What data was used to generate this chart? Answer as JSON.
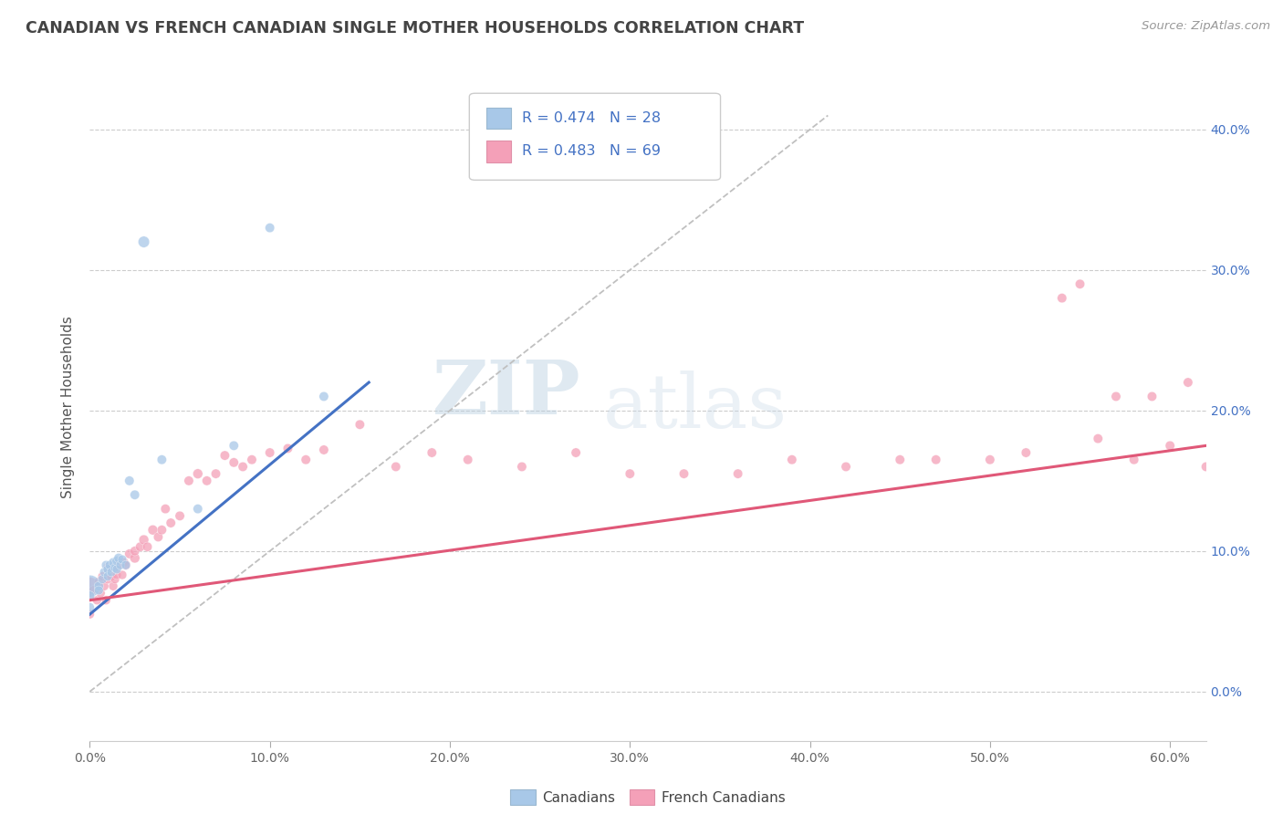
{
  "title": "CANADIAN VS FRENCH CANADIAN SINGLE MOTHER HOUSEHOLDS CORRELATION CHART",
  "source": "Source: ZipAtlas.com",
  "ylabel": "Single Mother Households",
  "legend_canadians": "Canadians",
  "legend_french": "French Canadians",
  "r_canadian": 0.474,
  "n_canadian": 28,
  "r_french": 0.483,
  "n_french": 69,
  "color_canadian": "#a8c8e8",
  "color_french": "#f4a0b8",
  "color_canadian_line": "#4472c4",
  "color_french_line": "#e05878",
  "color_diag_line": "#c0c0c0",
  "watermark_zip": "ZIP",
  "watermark_atlas": "atlas",
  "xlim": [
    0.0,
    0.62
  ],
  "ylim": [
    -0.035,
    0.44
  ],
  "xticks": [
    0.0,
    0.1,
    0.2,
    0.3,
    0.4,
    0.5,
    0.6
  ],
  "yticks": [
    0.0,
    0.1,
    0.2,
    0.3,
    0.4
  ],
  "canadians_x": [
    0.0,
    0.0,
    0.0,
    0.005,
    0.005,
    0.007,
    0.008,
    0.009,
    0.01,
    0.01,
    0.011,
    0.012,
    0.013,
    0.014,
    0.015,
    0.015,
    0.016,
    0.017,
    0.018,
    0.02,
    0.022,
    0.025,
    0.03,
    0.04,
    0.06,
    0.08,
    0.1,
    0.13
  ],
  "canadians_y": [
    0.075,
    0.068,
    0.06,
    0.075,
    0.072,
    0.08,
    0.085,
    0.09,
    0.087,
    0.082,
    0.09,
    0.085,
    0.092,
    0.088,
    0.093,
    0.087,
    0.095,
    0.09,
    0.094,
    0.09,
    0.15,
    0.14,
    0.32,
    0.165,
    0.13,
    0.175,
    0.33,
    0.21
  ],
  "canadians_size": [
    300,
    60,
    50,
    55,
    50,
    50,
    50,
    50,
    55,
    50,
    50,
    50,
    50,
    50,
    55,
    50,
    55,
    50,
    50,
    50,
    55,
    55,
    80,
    55,
    55,
    55,
    55,
    55
  ],
  "french_x": [
    0.0,
    0.0,
    0.0,
    0.002,
    0.004,
    0.005,
    0.006,
    0.007,
    0.008,
    0.009,
    0.01,
    0.01,
    0.012,
    0.013,
    0.014,
    0.015,
    0.015,
    0.016,
    0.018,
    0.019,
    0.02,
    0.022,
    0.025,
    0.025,
    0.028,
    0.03,
    0.032,
    0.035,
    0.038,
    0.04,
    0.042,
    0.045,
    0.05,
    0.055,
    0.06,
    0.065,
    0.07,
    0.075,
    0.08,
    0.085,
    0.09,
    0.1,
    0.11,
    0.12,
    0.13,
    0.15,
    0.17,
    0.19,
    0.21,
    0.24,
    0.27,
    0.3,
    0.33,
    0.36,
    0.39,
    0.42,
    0.45,
    0.47,
    0.5,
    0.52,
    0.54,
    0.55,
    0.56,
    0.57,
    0.58,
    0.59,
    0.6,
    0.61,
    0.62
  ],
  "french_y": [
    0.075,
    0.068,
    0.055,
    0.072,
    0.065,
    0.078,
    0.07,
    0.082,
    0.075,
    0.065,
    0.08,
    0.088,
    0.082,
    0.075,
    0.08,
    0.088,
    0.083,
    0.09,
    0.083,
    0.092,
    0.09,
    0.098,
    0.095,
    0.1,
    0.103,
    0.108,
    0.103,
    0.115,
    0.11,
    0.115,
    0.13,
    0.12,
    0.125,
    0.15,
    0.155,
    0.15,
    0.155,
    0.168,
    0.163,
    0.16,
    0.165,
    0.17,
    0.173,
    0.165,
    0.172,
    0.19,
    0.16,
    0.17,
    0.165,
    0.16,
    0.17,
    0.155,
    0.155,
    0.155,
    0.165,
    0.16,
    0.165,
    0.165,
    0.165,
    0.17,
    0.28,
    0.29,
    0.18,
    0.21,
    0.165,
    0.21,
    0.175,
    0.22,
    0.16
  ],
  "french_size": [
    200,
    60,
    50,
    55,
    50,
    55,
    50,
    50,
    50,
    50,
    55,
    55,
    50,
    50,
    50,
    55,
    50,
    55,
    50,
    50,
    55,
    55,
    60,
    55,
    55,
    60,
    55,
    60,
    55,
    55,
    55,
    55,
    55,
    55,
    60,
    55,
    55,
    55,
    55,
    55,
    55,
    55,
    55,
    55,
    55,
    55,
    55,
    55,
    55,
    55,
    55,
    55,
    55,
    55,
    55,
    55,
    55,
    55,
    55,
    55,
    55,
    55,
    55,
    55,
    55,
    55,
    55,
    55,
    55
  ],
  "canadian_line_x": [
    0.0,
    0.155
  ],
  "canadian_line_y": [
    0.055,
    0.22
  ],
  "french_line_x": [
    0.0,
    0.62
  ],
  "french_line_y": [
    0.065,
    0.175
  ],
  "diag_line_x": [
    0.0,
    0.41
  ],
  "diag_line_y": [
    0.0,
    0.41
  ]
}
